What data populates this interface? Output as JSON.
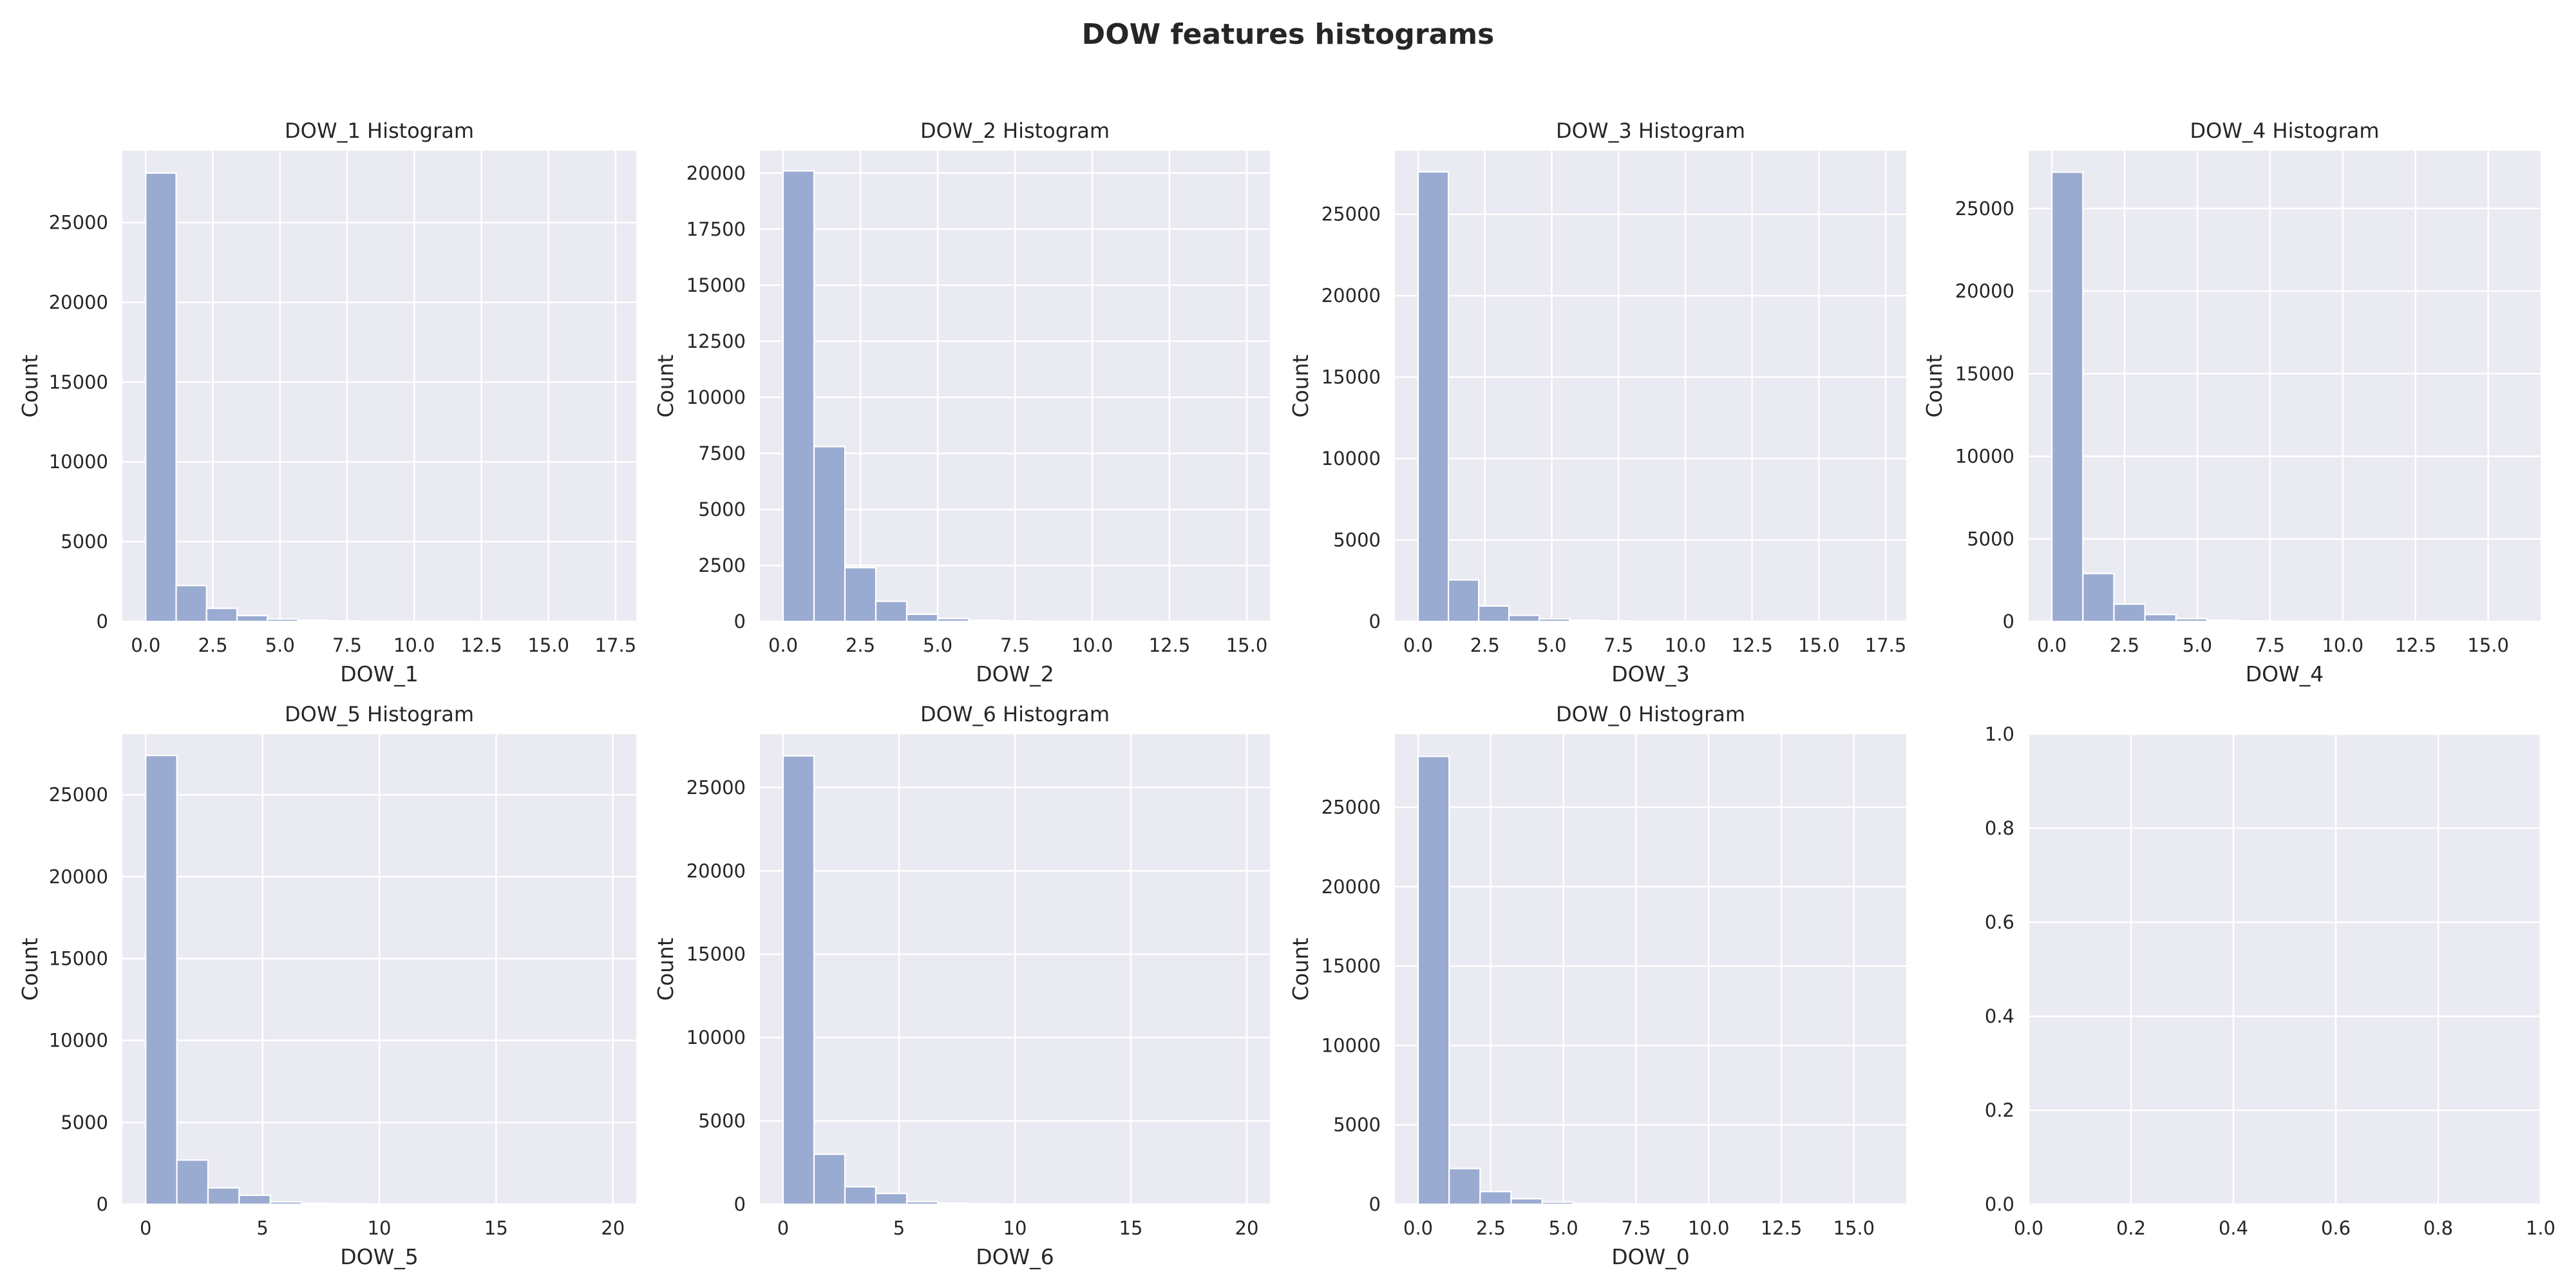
{
  "figure": {
    "suptitle": "DOW features histograms",
    "style": {
      "axes_face": "#eaeaf2",
      "grid": "#ffffff",
      "bar_fill": "#9aabd1",
      "bar_edge": "#ffffff"
    }
  },
  "chart_data": [
    {
      "type": "bar",
      "title": "DOW_1 Histogram",
      "xlabel": "DOW_1",
      "ylabel": "Count",
      "xlim": [
        -0.87,
        18.27
      ],
      "ylim": [
        0,
        29500
      ],
      "xticks": [
        0,
        2.5,
        5,
        7.5,
        10,
        12.5,
        15,
        17.5
      ],
      "xtick_labels": [
        "0.0",
        "2.5",
        "5.0",
        "7.5",
        "10.0",
        "12.5",
        "15.0",
        "17.5"
      ],
      "yticks": [
        0,
        5000,
        10000,
        15000,
        20000,
        25000
      ],
      "ytick_labels": [
        "0",
        "5000",
        "10000",
        "15000",
        "20000",
        "25000"
      ],
      "bin_width": 1.1333,
      "x": [
        0,
        1.1333,
        2.2667,
        3.4,
        4.5333,
        5.6667,
        6.8,
        7.9333,
        9.0667,
        10.2
      ],
      "values": [
        28100,
        2250,
        820,
        370,
        150,
        70,
        35,
        20,
        10,
        5
      ]
    },
    {
      "type": "bar",
      "title": "DOW_2 Histogram",
      "xlabel": "DOW_2",
      "ylabel": "Count",
      "xlim": [
        -0.75,
        15.75
      ],
      "ylim": [
        0,
        21000
      ],
      "xticks": [
        0,
        2.5,
        5,
        7.5,
        10,
        12.5,
        15
      ],
      "xtick_labels": [
        "0.0",
        "2.5",
        "5.0",
        "7.5",
        "10.0",
        "12.5",
        "15.0"
      ],
      "yticks": [
        0,
        2500,
        5000,
        7500,
        10000,
        12500,
        15000,
        17500,
        20000
      ],
      "ytick_labels": [
        "0",
        "2500",
        "5000",
        "7500",
        "10000",
        "12500",
        "15000",
        "17500",
        "20000"
      ],
      "bin_width": 1.0,
      "x": [
        0,
        1,
        2,
        3,
        4,
        5,
        6,
        7,
        8,
        9
      ],
      "values": [
        20100,
        7800,
        2400,
        900,
        320,
        130,
        55,
        25,
        10,
        5
      ]
    },
    {
      "type": "bar",
      "title": "DOW_3 Histogram",
      "xlabel": "DOW_3",
      "ylabel": "Count",
      "xlim": [
        -0.87,
        18.27
      ],
      "ylim": [
        0,
        28900
      ],
      "xticks": [
        0,
        2.5,
        5,
        7.5,
        10,
        12.5,
        15,
        17.5
      ],
      "xtick_labels": [
        "0.0",
        "2.5",
        "5.0",
        "7.5",
        "10.0",
        "12.5",
        "15.0",
        "17.5"
      ],
      "yticks": [
        0,
        5000,
        10000,
        15000,
        20000,
        25000
      ],
      "ytick_labels": [
        "0",
        "5000",
        "10000",
        "15000",
        "20000",
        "25000"
      ],
      "bin_width": 1.1333,
      "x": [
        0,
        1.1333,
        2.2667,
        3.4,
        4.5333,
        5.6667,
        6.8,
        7.9333,
        9.0667,
        10.2
      ],
      "values": [
        27600,
        2550,
        950,
        380,
        160,
        70,
        35,
        20,
        10,
        5
      ]
    },
    {
      "type": "bar",
      "title": "DOW_4 Histogram",
      "xlabel": "DOW_4",
      "ylabel": "Count",
      "xlim": [
        -0.8,
        16.8
      ],
      "ylim": [
        0,
        28500
      ],
      "xticks": [
        0,
        2.5,
        5,
        7.5,
        10,
        12.5,
        15
      ],
      "xtick_labels": [
        "0.0",
        "2.5",
        "5.0",
        "7.5",
        "10.0",
        "12.5",
        "15.0"
      ],
      "yticks": [
        0,
        5000,
        10000,
        15000,
        20000,
        25000
      ],
      "ytick_labels": [
        "0",
        "5000",
        "10000",
        "15000",
        "20000",
        "25000"
      ],
      "bin_width": 1.0667,
      "x": [
        0,
        1.0667,
        2.1333,
        3.2,
        4.2667,
        5.3333,
        6.4,
        7.4667,
        8.5333,
        9.6
      ],
      "values": [
        27200,
        2900,
        1050,
        420,
        170,
        75,
        35,
        18,
        8,
        4
      ]
    },
    {
      "type": "bar",
      "title": "DOW_5 Histogram",
      "xlabel": "DOW_5",
      "ylabel": "Count",
      "xlim": [
        -1.0,
        21.0
      ],
      "ylim": [
        0,
        28700
      ],
      "xticks": [
        0,
        5,
        10,
        15,
        20
      ],
      "xtick_labels": [
        "0",
        "5",
        "10",
        "15",
        "20"
      ],
      "yticks": [
        0,
        5000,
        10000,
        15000,
        20000,
        25000
      ],
      "ytick_labels": [
        "0",
        "5000",
        "10000",
        "15000",
        "20000",
        "25000"
      ],
      "bin_width": 1.3333,
      "x": [
        0,
        1.3333,
        2.6667,
        4,
        5.3333,
        6.6667,
        8,
        9.3333,
        10.6667,
        12
      ],
      "values": [
        27400,
        2700,
        1000,
        550,
        150,
        70,
        35,
        18,
        8,
        4
      ]
    },
    {
      "type": "bar",
      "title": "DOW_6 Histogram",
      "xlabel": "DOW_6",
      "ylabel": "Count",
      "xlim": [
        -1.0,
        21.0
      ],
      "ylim": [
        0,
        28200
      ],
      "xticks": [
        0,
        5,
        10,
        15,
        20
      ],
      "xtick_labels": [
        "0",
        "5",
        "10",
        "15",
        "20"
      ],
      "yticks": [
        0,
        5000,
        10000,
        15000,
        20000,
        25000
      ],
      "ytick_labels": [
        "0",
        "5000",
        "10000",
        "15000",
        "20000",
        "25000"
      ],
      "bin_width": 1.3333,
      "x": [
        0,
        1.3333,
        2.6667,
        4,
        5.3333,
        6.6667,
        8,
        9.3333,
        10.6667,
        12
      ],
      "values": [
        26900,
        3000,
        1050,
        650,
        160,
        70,
        35,
        18,
        8,
        4
      ]
    },
    {
      "type": "bar",
      "title": "DOW_0 Histogram",
      "xlabel": "DOW_0",
      "ylabel": "Count",
      "xlim": [
        -0.8,
        16.8
      ],
      "ylim": [
        0,
        29600
      ],
      "xticks": [
        0,
        2.5,
        5,
        7.5,
        10,
        12.5,
        15
      ],
      "xtick_labels": [
        "0.0",
        "2.5",
        "5.0",
        "7.5",
        "10.0",
        "12.5",
        "15.0"
      ],
      "yticks": [
        0,
        5000,
        10000,
        15000,
        20000,
        25000
      ],
      "ytick_labels": [
        "0",
        "5000",
        "10000",
        "15000",
        "20000",
        "25000"
      ],
      "bin_width": 1.0667,
      "x": [
        0,
        1.0667,
        2.1333,
        3.2,
        4.2667,
        5.3333,
        6.4,
        7.4667,
        8.5333,
        9.6
      ],
      "values": [
        28200,
        2250,
        800,
        350,
        140,
        60,
        30,
        15,
        8,
        4
      ]
    },
    {
      "type": "bar",
      "title": "",
      "xlabel": "",
      "ylabel": "",
      "xlim": [
        0,
        1
      ],
      "ylim": [
        0,
        1
      ],
      "xticks": [
        0,
        0.2,
        0.4,
        0.6,
        0.8,
        1.0
      ],
      "xtick_labels": [
        "0.0",
        "0.2",
        "0.4",
        "0.6",
        "0.8",
        "1.0"
      ],
      "yticks": [
        0,
        0.2,
        0.4,
        0.6,
        0.8,
        1.0
      ],
      "ytick_labels": [
        "0.0",
        "0.2",
        "0.4",
        "0.6",
        "0.8",
        "1.0"
      ],
      "bin_width": 0,
      "x": [],
      "values": []
    }
  ]
}
